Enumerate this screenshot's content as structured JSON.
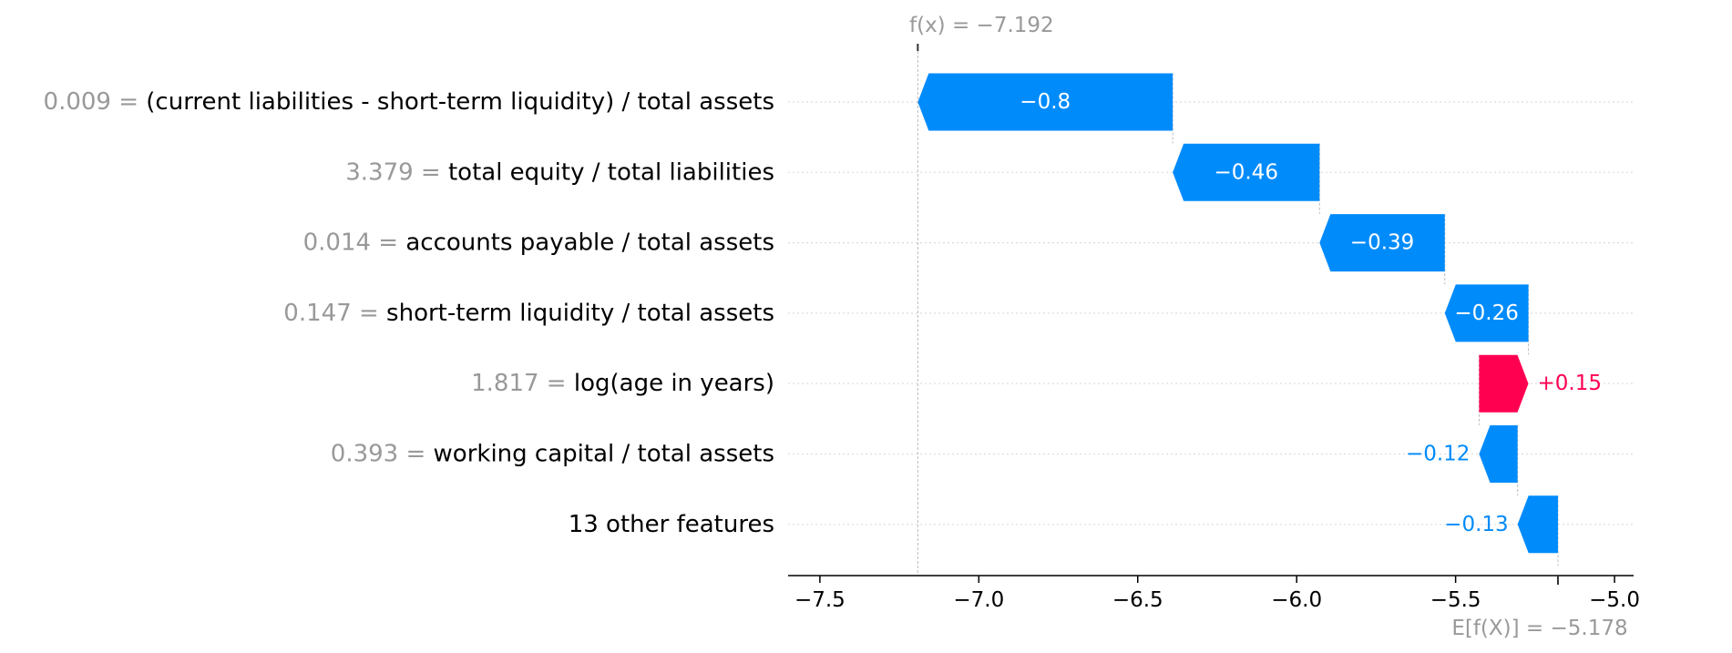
{
  "chart_data": {
    "type": "waterfall",
    "fx_label": "f(x) = −7.192",
    "fx_value": -7.192,
    "base_label": "E[f(X)] = −5.178",
    "base_value": -5.178,
    "xlim": [
      -7.6,
      -4.94
    ],
    "xticks": [
      -7.5,
      -7.0,
      -6.5,
      -6.0,
      -5.5,
      -5.0
    ],
    "xtick_labels": [
      "−7.5",
      "−7.0",
      "−6.5",
      "−6.0",
      "−5.5",
      "−5.0"
    ],
    "features": [
      {
        "value": "0.009",
        "name": "(current liabilities - short-term liquidity) / total assets",
        "shap": -0.8,
        "start": -6.39,
        "end": -7.192,
        "label": "−0.8"
      },
      {
        "value": "3.379",
        "name": "total equity / total liabilities",
        "shap": -0.46,
        "start": -5.928,
        "end": -6.39,
        "label": "−0.46"
      },
      {
        "value": "0.014",
        "name": "accounts payable / total assets",
        "shap": -0.39,
        "start": -5.534,
        "end": -5.928,
        "label": "−0.39"
      },
      {
        "value": "0.147",
        "name": "short-term liquidity / total assets",
        "shap": -0.26,
        "start": -5.271,
        "end": -5.534,
        "label": "−0.26"
      },
      {
        "value": "1.817",
        "name": "log(age in years)",
        "shap": 0.15,
        "start": -5.426,
        "end": -5.271,
        "label": "+0.15"
      },
      {
        "value": "0.393",
        "name": "working capital / total assets",
        "shap": -0.12,
        "start": -5.305,
        "end": -5.426,
        "label": "−0.12"
      },
      {
        "value": "",
        "name": "13 other features",
        "shap": -0.13,
        "start": -5.178,
        "end": -5.305,
        "label": "−0.13"
      }
    ],
    "colors": {
      "negative": "#008bfb",
      "positive": "#ff0051",
      "muted": "#999999",
      "text": "#000000"
    }
  }
}
